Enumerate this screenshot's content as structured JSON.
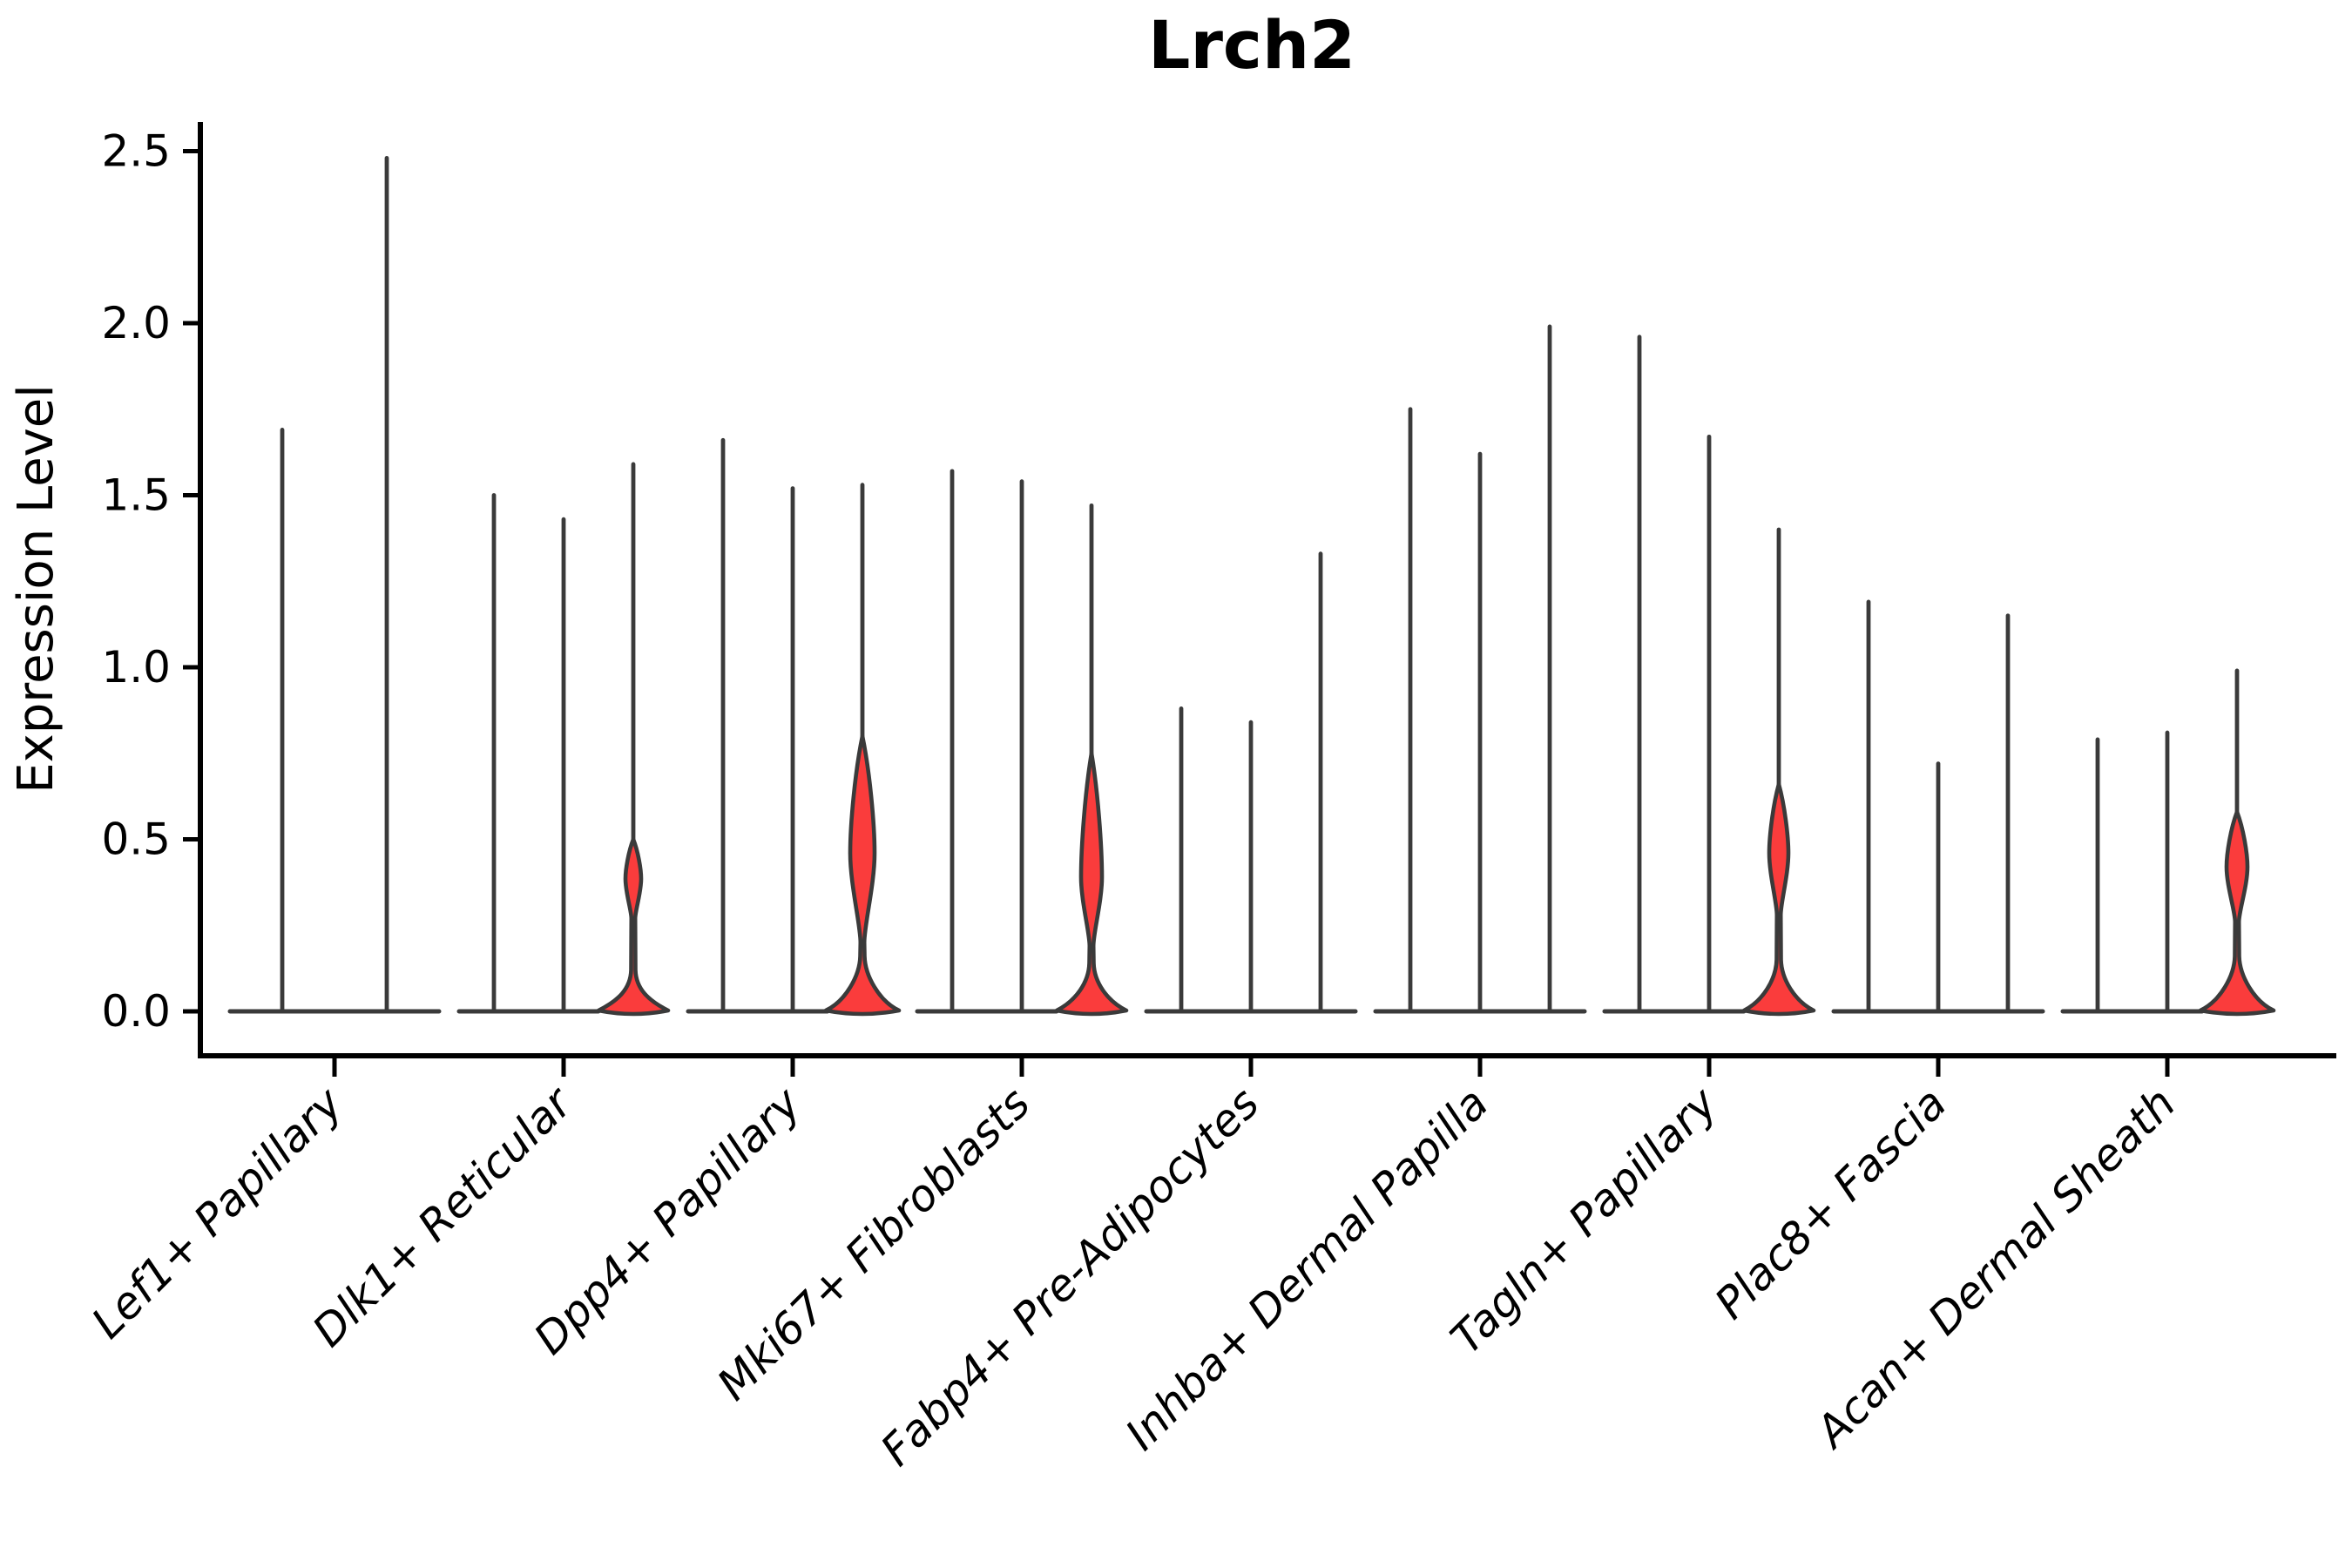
{
  "chart_data": {
    "type": "violin",
    "title": "Lrch2",
    "xlabel": "",
    "ylabel": "Expression Level",
    "ylim": [
      -0.13,
      2.59
    ],
    "yticks": [
      0.0,
      0.5,
      1.0,
      1.5,
      2.0,
      2.5
    ],
    "ytick_labels": [
      "0.0",
      "0.5",
      "1.0",
      "1.5",
      "2.0",
      "2.5"
    ],
    "grid": false,
    "legend": false,
    "x_label_rotation_deg": 45,
    "x_label_style": "italic",
    "colors": {
      "violin_fill": "#fa3c3c",
      "violin_outline": "#3a3a3a",
      "axis": "#000000",
      "text": "#000000",
      "background": "#ffffff"
    },
    "categories": [
      "Lef1+ Papillary",
      "Dlk1+ Reticular",
      "Dpp4+ Papillary",
      "Mki67+ Fibroblasts",
      "Fabp4+ Pre-Adipocytes",
      "Inhba+ Dermal Papilla",
      "Tagln+ Papillary",
      "Plac8+ Fascia",
      "Acan+ Dermal Sheath"
    ],
    "series": [
      {
        "category": "Lef1+ Papillary",
        "violins": [
          {
            "offset": -60,
            "halfwidth": 60,
            "max": 1.69,
            "body": null
          },
          {
            "offset": 60,
            "halfwidth": 60,
            "max": 2.48,
            "body": null
          }
        ]
      },
      {
        "category": "Dlk1+ Reticular",
        "violins": [
          {
            "offset": -80,
            "halfwidth": 40,
            "max": 1.5,
            "body": null
          },
          {
            "offset": 0,
            "halfwidth": 40,
            "max": 1.43,
            "body": null
          },
          {
            "offset": 80,
            "halfwidth": 40,
            "max": 1.59,
            "body": {
              "lo": 0.27,
              "peak": 0.385,
              "hi": 0.5,
              "peak_hw": 9,
              "base_top": 0.09,
              "base_hw": 40
            }
          }
        ]
      },
      {
        "category": "Dpp4+ Papillary",
        "violins": [
          {
            "offset": -80,
            "halfwidth": 40,
            "max": 1.66,
            "body": null
          },
          {
            "offset": 0,
            "halfwidth": 40,
            "max": 1.52,
            "body": null
          },
          {
            "offset": 80,
            "halfwidth": 40,
            "max": 1.53,
            "body": {
              "lo": 0.2,
              "peak": 0.46,
              "hi": 0.8,
              "peak_hw": 14,
              "base_top": 0.13,
              "base_hw": 42
            }
          }
        ]
      },
      {
        "category": "Mki67+ Fibroblasts",
        "violins": [
          {
            "offset": -80,
            "halfwidth": 40,
            "max": 1.57,
            "body": null
          },
          {
            "offset": 0,
            "halfwidth": 40,
            "max": 1.54,
            "body": null
          },
          {
            "offset": 80,
            "halfwidth": 40,
            "max": 1.47,
            "body": {
              "lo": 0.19,
              "peak": 0.39,
              "hi": 0.75,
              "peak_hw": 12,
              "base_top": 0.11,
              "base_hw": 40
            }
          }
        ]
      },
      {
        "category": "Fabp4+ Pre-Adipocytes",
        "violins": [
          {
            "offset": -80,
            "halfwidth": 40,
            "max": 0.88,
            "body": null
          },
          {
            "offset": 0,
            "halfwidth": 40,
            "max": 0.84,
            "body": null
          },
          {
            "offset": 80,
            "halfwidth": 40,
            "max": 1.33,
            "body": null
          }
        ]
      },
      {
        "category": "Inhba+ Dermal Papilla",
        "violins": [
          {
            "offset": -80,
            "halfwidth": 40,
            "max": 1.75,
            "body": null
          },
          {
            "offset": 0,
            "halfwidth": 40,
            "max": 1.62,
            "body": null
          },
          {
            "offset": 80,
            "halfwidth": 40,
            "max": 1.99,
            "body": null
          }
        ]
      },
      {
        "category": "Tagln+ Papillary",
        "violins": [
          {
            "offset": -80,
            "halfwidth": 40,
            "max": 1.96,
            "body": null
          },
          {
            "offset": 0,
            "halfwidth": 40,
            "max": 1.67,
            "body": null
          },
          {
            "offset": 80,
            "halfwidth": 40,
            "max": 1.4,
            "body": {
              "lo": 0.28,
              "peak": 0.46,
              "hi": 0.66,
              "peak_hw": 11,
              "base_top": 0.12,
              "base_hw": 40
            }
          }
        ]
      },
      {
        "category": "Plac8+ Fascia",
        "violins": [
          {
            "offset": -80,
            "halfwidth": 40,
            "max": 1.19,
            "body": null
          },
          {
            "offset": 0,
            "halfwidth": 40,
            "max": 0.72,
            "body": null
          },
          {
            "offset": 80,
            "halfwidth": 40,
            "max": 1.15,
            "body": null
          }
        ]
      },
      {
        "category": "Acan+ Dermal Sheath",
        "violins": [
          {
            "offset": -80,
            "halfwidth": 40,
            "max": 0.79,
            "body": null
          },
          {
            "offset": 0,
            "halfwidth": 40,
            "max": 0.81,
            "body": null
          },
          {
            "offset": 80,
            "halfwidth": 42,
            "max": 0.99,
            "body": {
              "lo": 0.26,
              "peak": 0.42,
              "hi": 0.58,
              "peak_hw": 12,
              "base_top": 0.13,
              "base_hw": 42
            }
          }
        ]
      }
    ]
  }
}
